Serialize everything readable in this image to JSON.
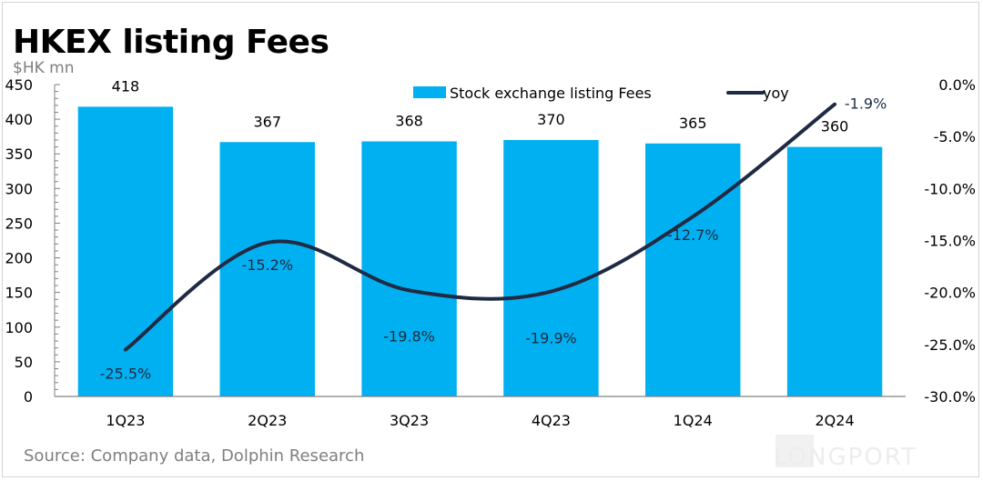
{
  "header": {
    "title": "HKEX listing Fees",
    "unit": "$HK mn"
  },
  "footer": {
    "source": "Source: Company data, Dolphin Research",
    "watermark": "LONGPORT"
  },
  "colors": {
    "bar": "#00b0f0",
    "line": "#1f2a44",
    "axis_text": "#000000",
    "axis_line": "#808080"
  },
  "chart_data": {
    "type": "bar",
    "title": "HKEX listing Fees",
    "xlabel": "",
    "ylabel": "$HK mn",
    "categories": [
      "1Q23",
      "2Q23",
      "3Q23",
      "4Q23",
      "1Q24",
      "2Q24"
    ],
    "series": [
      {
        "name": "Stock exchange listing Fees",
        "type": "bar",
        "axis": "left",
        "values": [
          418,
          367,
          368,
          370,
          365,
          360
        ],
        "labels": [
          "418",
          "367",
          "368",
          "370",
          "365",
          "360"
        ]
      },
      {
        "name": "yoy",
        "type": "line",
        "axis": "right",
        "smooth": true,
        "values": [
          -25.5,
          -15.2,
          -19.8,
          -19.9,
          -12.7,
          -1.9
        ],
        "labels": [
          "-25.5%",
          "-15.2%",
          "-19.8%",
          "-19.9%",
          "-12.7%",
          "-1.9%"
        ]
      }
    ],
    "ylim": [
      0,
      450
    ],
    "yticks": [
      "0",
      "50",
      "100",
      "150",
      "200",
      "250",
      "300",
      "350",
      "400",
      "450"
    ],
    "y2lim": [
      -30,
      0
    ],
    "y2ticks": [
      "-30.0%",
      "-25.0%",
      "-20.0%",
      "-15.0%",
      "-10.0%",
      "-5.0%",
      "0.0%"
    ],
    "legend": {
      "position": "top-right",
      "entries": [
        "Stock exchange listing Fees",
        "yoy"
      ]
    },
    "grid": false
  }
}
